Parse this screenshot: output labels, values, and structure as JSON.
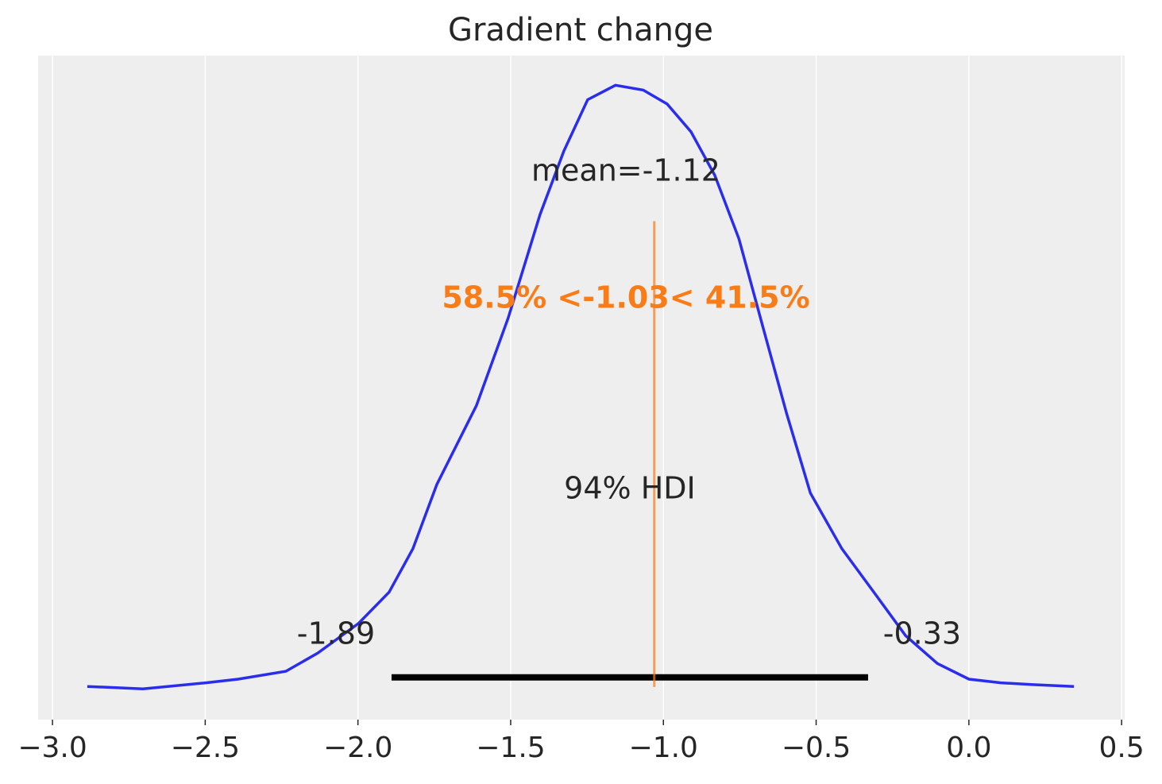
{
  "chart_data": {
    "type": "density",
    "title": "Gradient change",
    "x": [
      -2.886,
      -2.704,
      -2.498,
      -2.392,
      -2.236,
      -2.132,
      -1.999,
      -1.898,
      -1.82,
      -1.742,
      -1.612,
      -1.508,
      -1.404,
      -1.326,
      -1.248,
      -1.157,
      -1.066,
      -0.988,
      -0.91,
      -0.832,
      -0.753,
      -0.675,
      -0.597,
      -0.519,
      -0.416,
      -0.311,
      -0.207,
      -0.103,
      0.0,
      0.105,
      0.209,
      0.344
    ],
    "values": [
      0.005,
      0.001,
      0.011,
      0.017,
      0.03,
      0.06,
      0.109,
      0.161,
      0.233,
      0.339,
      0.47,
      0.615,
      0.786,
      0.891,
      0.976,
      1.0,
      0.992,
      0.969,
      0.923,
      0.851,
      0.746,
      0.601,
      0.457,
      0.325,
      0.233,
      0.161,
      0.089,
      0.043,
      0.017,
      0.011,
      0.008,
      0.005
    ],
    "color": "#2a2eec",
    "xlim": [
      -3.047,
      0.51
    ],
    "ylim": [
      -0.05,
      1.049
    ],
    "xticks": [
      {
        "value": -3.0,
        "label": "−3.0"
      },
      {
        "value": -2.5,
        "label": "−2.5"
      },
      {
        "value": -2.0,
        "label": "−2.0"
      },
      {
        "value": -1.5,
        "label": "−1.5"
      },
      {
        "value": -1.0,
        "label": "−1.0"
      },
      {
        "value": -0.5,
        "label": "−0.5"
      },
      {
        "value": 0.0,
        "label": "0.0"
      },
      {
        "value": 0.5,
        "label": "0.5"
      }
    ],
    "grid": true,
    "mean_label": "mean=-1.12",
    "ref_value": -1.03,
    "ref_label": "58.5% <-1.03< 41.5%",
    "ref_color": "#fa7c17",
    "hdi": [
      -1.89,
      -0.33
    ],
    "hdi_label": "94% HDI"
  }
}
